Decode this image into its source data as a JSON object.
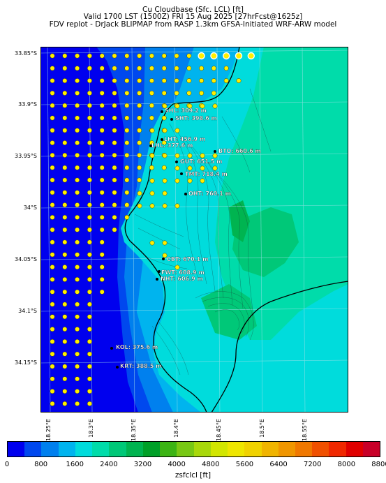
{
  "titles": {
    "line1": "Cu Cloudbase (Sfc. LCL) [ft]",
    "line2": "Valid 1700 LST (1500Z) FRI 15 Aug 2025 [27hrFcst@1625z]",
    "line3": "FDV replot - DrJack BLIPMAP from RASP 1.3km GFSA-Initiated WRF-ARW model"
  },
  "lat_labels": [
    "33.85°S",
    "33.9°S",
    "33.95°S",
    "34°S",
    "34.05°S",
    "34.1°S",
    "34.15°S"
  ],
  "lon_labels": [
    "18.25°E",
    "18.3°E",
    "18.35°E",
    "18.4°E",
    "18.45°E",
    "18.5°E",
    "18.55°E"
  ],
  "sites": [
    {
      "label": "SHL: 309.2 m"
    },
    {
      "label": "SHT: 398.6 m"
    },
    {
      "label": "LHT: 456.9 m"
    },
    {
      "label": "LHL: 377.6 m"
    },
    {
      "label": "BTO: 660.6 m"
    },
    {
      "label": "GUT: 651.5 m"
    },
    {
      "label": "TMT: 718.4 m"
    },
    {
      "label": "OHT: 760.1 m"
    },
    {
      "label": "CBT: 670.1 m"
    },
    {
      "label": "FWT: 608.9 m"
    },
    {
      "label": "NHT: 606.9 m"
    },
    {
      "label": "KOL: 375.6 m"
    },
    {
      "label": "KRT: 388.5 m"
    }
  ],
  "colorbar": {
    "title": "zsfclcl [ft]",
    "ticks": [
      "0",
      "800",
      "1600",
      "2400",
      "3200",
      "4000",
      "4800",
      "5600",
      "6400",
      "7200",
      "8000",
      "8800"
    ],
    "colors": [
      "#0000ee",
      "#0048ee",
      "#0080ee",
      "#00b4ee",
      "#00dcdc",
      "#00dcaa",
      "#00c878",
      "#00b450",
      "#00a028",
      "#3cb414",
      "#78c814",
      "#a8d80a",
      "#d2e600",
      "#eee600",
      "#f0d200",
      "#f0b400",
      "#f09600",
      "#f07800",
      "#f05000",
      "#f02800",
      "#e00000",
      "#c80028"
    ]
  }
}
